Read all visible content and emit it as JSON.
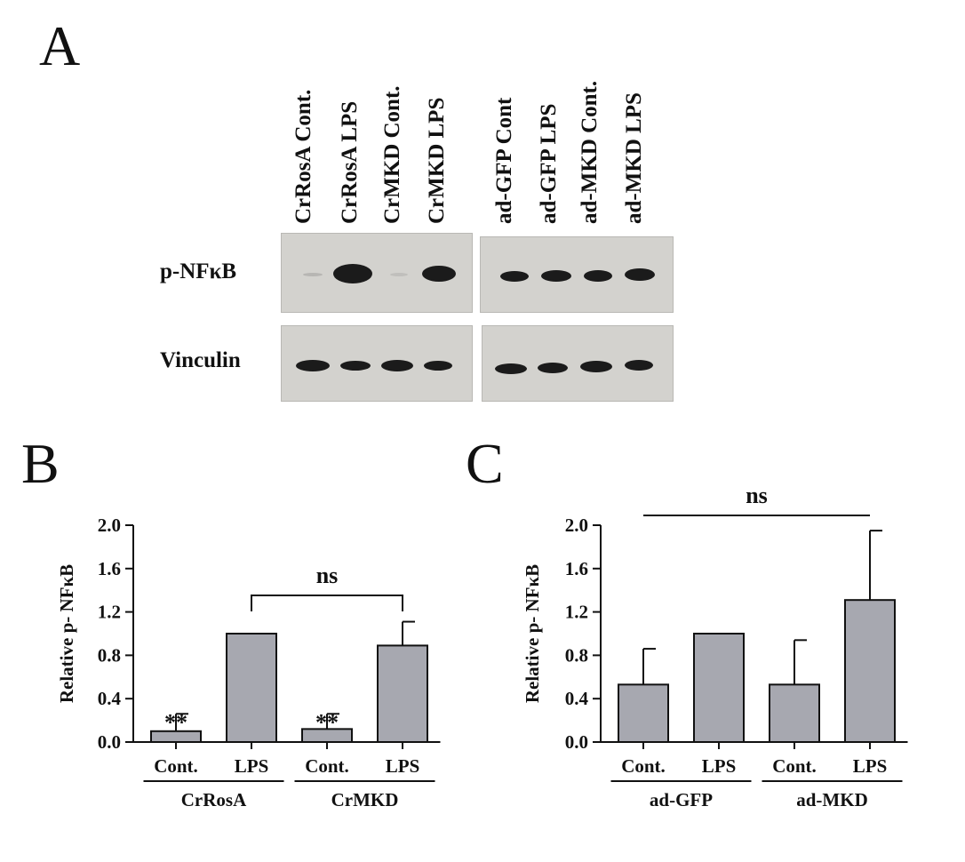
{
  "figure": {
    "panel_a_letter": "A",
    "panel_b_letter": "B",
    "panel_c_letter": "C",
    "blot": {
      "lanes": [
        "CrRosA Cont.",
        "CrRosA LPS",
        "CrMKD Cont.",
        "CrMKD LPS",
        "ad-GFP Cont",
        "ad-GFP LPS",
        "ad-MKD Cont.",
        "ad-MKD LPS"
      ],
      "rows": [
        "p-NFκB",
        "Vinculin"
      ],
      "band_color": "#1b1b1b",
      "membrane_color": "#d3d2ce"
    }
  },
  "chart_data": [
    {
      "type": "bar",
      "panel": "B",
      "ylabel": "Relative p- NFκB",
      "ylim": [
        0,
        2.0
      ],
      "yticks": [
        "0.0",
        "0.4",
        "0.8",
        "1.2",
        "1.6",
        "2.0"
      ],
      "categories": [
        "Cont.",
        "LPS",
        "Cont.",
        "LPS"
      ],
      "groups": [
        {
          "label": "CrRosA",
          "span": [
            0,
            1
          ]
        },
        {
          "label": "CrMKD",
          "span": [
            2,
            3
          ]
        }
      ],
      "values": [
        0.1,
        1.0,
        0.12,
        0.89
      ],
      "errors": [
        0.16,
        0.0,
        0.14,
        0.22
      ],
      "annotations": [
        "**",
        "",
        "**",
        ""
      ],
      "significance": [
        {
          "from": 1,
          "to": 3,
          "label": "ns"
        }
      ],
      "bar_color": "#a7a8b0"
    },
    {
      "type": "bar",
      "panel": "C",
      "ylabel": "Relative p- NFκB",
      "ylim": [
        0,
        2.0
      ],
      "yticks": [
        "0.0",
        "0.4",
        "0.8",
        "1.2",
        "1.6",
        "2.0"
      ],
      "categories": [
        "Cont.",
        "LPS",
        "Cont.",
        "LPS"
      ],
      "groups": [
        {
          "label": "ad-GFP",
          "span": [
            0,
            1
          ]
        },
        {
          "label": "ad-MKD",
          "span": [
            2,
            3
          ]
        }
      ],
      "values": [
        0.53,
        1.0,
        0.53,
        1.31
      ],
      "errors": [
        0.33,
        0.0,
        0.41,
        0.64
      ],
      "annotations": [
        "",
        "",
        "",
        ""
      ],
      "significance": [
        {
          "from": 0,
          "to": 3,
          "label": "ns"
        }
      ],
      "bar_color": "#a7a8b0"
    }
  ]
}
